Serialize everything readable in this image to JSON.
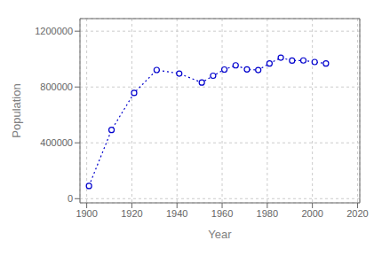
{
  "chart_data": {
    "type": "line",
    "x": [
      1901,
      1911,
      1921,
      1931,
      1941,
      1951,
      1956,
      1961,
      1966,
      1971,
      1976,
      1981,
      1986,
      1991,
      1996,
      2001,
      2006
    ],
    "values": [
      91279,
      492432,
      757510,
      921785,
      895992,
      831728,
      880665,
      925181,
      955344,
      926242,
      921323,
      968313,
      1010198,
      988928,
      990237,
      978933,
      968157
    ],
    "color": "#0000CD",
    "marker": "circle",
    "line_style": "dotted",
    "xlim": [
      1897,
      2021
    ],
    "ylim": [
      -30000,
      1290000
    ],
    "xticks": [
      1900,
      1920,
      1940,
      1960,
      1980,
      2000,
      2020
    ],
    "yticks": [
      0,
      400000,
      800000,
      1200000
    ],
    "xlabel": "Year",
    "ylabel": "Population",
    "grid": true
  }
}
